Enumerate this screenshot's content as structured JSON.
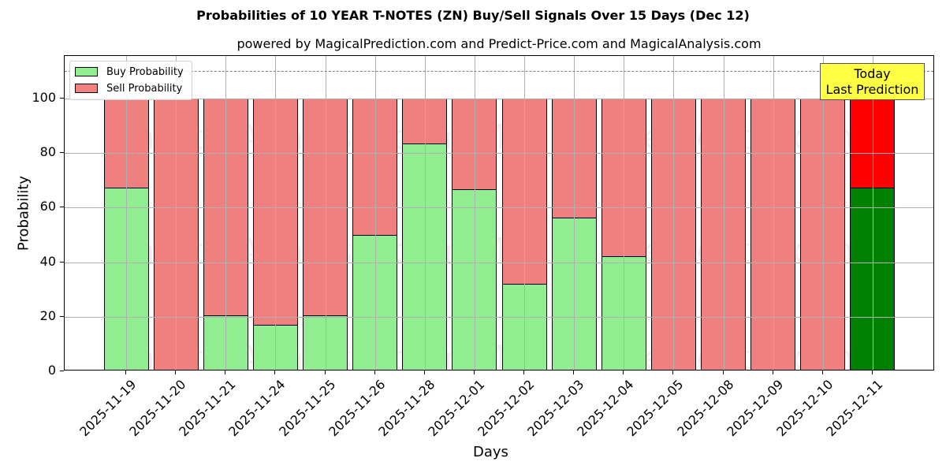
{
  "chart_data": {
    "type": "bar",
    "stacked": true,
    "title": "Probabilities of 10 YEAR T-NOTES (ZN) Buy/Sell Signals Over 15 Days (Dec 12)",
    "subtitle": "powered by MagicalPrediction.com and Predict-Price.com and MagicalAnalysis.com",
    "xlabel": "Days",
    "ylabel": "Probability",
    "ylim": [
      0,
      115.6
    ],
    "yticks": [
      0,
      20,
      40,
      60,
      80,
      100
    ],
    "grid": true,
    "reference_line": {
      "y": 110,
      "style": "dashed",
      "color": "#808080"
    },
    "legend": {
      "position": "upper left",
      "entries": [
        "Buy Probability",
        "Sell Probability"
      ]
    },
    "categories": [
      "2025-11-19",
      "2025-11-20",
      "2025-11-21",
      "2025-11-24",
      "2025-11-25",
      "2025-11-26",
      "2025-11-28",
      "2025-12-01",
      "2025-12-02",
      "2025-12-03",
      "2025-12-04",
      "2025-12-05",
      "2025-12-08",
      "2025-12-09",
      "2025-12-10",
      "2025-12-11"
    ],
    "series": [
      {
        "name": "Buy Probability",
        "color": "#90ee90",
        "values": [
          67.3,
          0,
          20.5,
          17.1,
          20.5,
          50.0,
          83.6,
          66.7,
          32.2,
          56.3,
          42.3,
          0,
          0,
          0,
          0,
          67.2
        ]
      },
      {
        "name": "Sell Probability",
        "color": "#f08080",
        "values": [
          32.7,
          100,
          79.5,
          82.9,
          79.5,
          50.0,
          16.4,
          33.3,
          67.8,
          43.7,
          57.7,
          100,
          100,
          100,
          100,
          32.8
        ]
      }
    ],
    "highlight": {
      "index": 15,
      "buy_color": "#008000",
      "sell_color": "#ff0000",
      "annotation": [
        "Today",
        "Last Prediction"
      ],
      "annotation_bg": "#ffff44"
    }
  },
  "header": {
    "title": "Probabilities of 10 YEAR T-NOTES (ZN) Buy/Sell Signals Over 15 Days (Dec 12)",
    "subtitle": "powered by MagicalPrediction.com and Predict-Price.com and MagicalAnalysis.com"
  },
  "legend": {
    "buy_label": "Buy Probability",
    "sell_label": "Sell Probability"
  },
  "annotation": {
    "line1": "Today",
    "line2": "Last Prediction"
  },
  "axes": {
    "x_title": "Days",
    "y_title": "Probability"
  },
  "watermarks": [
    "MagicalAnalysis.com",
    "MagicalPrediction.com"
  ]
}
